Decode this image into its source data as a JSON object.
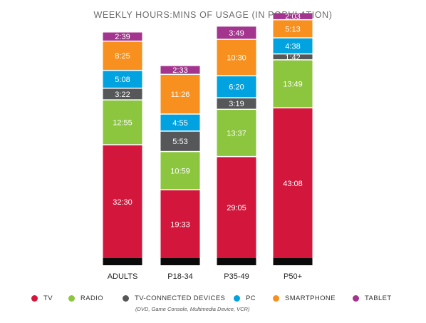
{
  "chart_data": {
    "type": "bar",
    "stacked": true,
    "title": "WEEKLY HOURS:MINS OF USAGE (IN POPULATION)",
    "categories": [
      "ADULTS",
      "P18-34",
      "P35-49",
      "P50+"
    ],
    "series": [
      {
        "name": "TV",
        "color": "#d3173c",
        "values": [
          32.5,
          19.55,
          29.0833,
          43.1333
        ],
        "labels": [
          "32:30",
          "19:33",
          "29:05",
          "43:08"
        ]
      },
      {
        "name": "RADIO",
        "color": "#8cc63f",
        "values": [
          12.9167,
          10.9833,
          13.6167,
          13.8167
        ],
        "labels": [
          "12:55",
          "10:59",
          "13:37",
          "13:49"
        ]
      },
      {
        "name": "TV-CONNECTED DEVICES",
        "color": "#555759",
        "values": [
          3.3667,
          5.8833,
          3.3167,
          1.7
        ],
        "labels": [
          "3:22",
          "5:53",
          "3:19",
          "1:42"
        ]
      },
      {
        "name": "PC",
        "color": "#00a3e0",
        "values": [
          5.1333,
          4.9167,
          6.3333,
          4.6333
        ],
        "labels": [
          "5:08",
          "4:55",
          "6:20",
          "4:38"
        ]
      },
      {
        "name": "SMARTPHONE",
        "color": "#f7901e",
        "values": [
          8.4167,
          11.4333,
          10.5,
          5.2167
        ],
        "labels": [
          "8:25",
          "11:26",
          "10:30",
          "5:13"
        ]
      },
      {
        "name": "TABLET",
        "color": "#a3358e",
        "values": [
          2.65,
          2.55,
          3.8167,
          2.05
        ],
        "labels": [
          "2:39",
          "2:33",
          "3:49",
          "2:03"
        ]
      }
    ],
    "legend_position": "bottom",
    "legend_note": "(DVD, Game Console, Multimedia Device, VCR)",
    "grid": false
  }
}
